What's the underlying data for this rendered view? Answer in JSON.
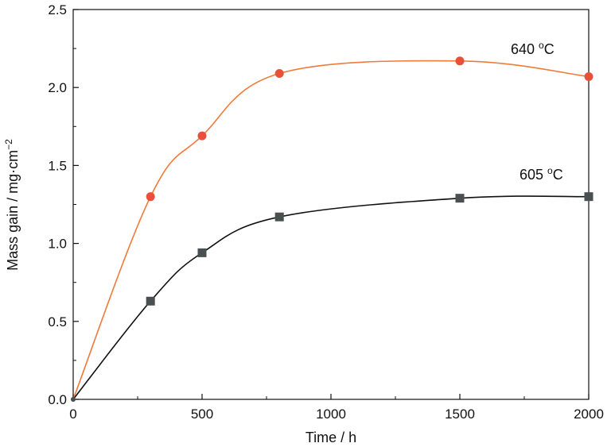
{
  "chart_data": {
    "type": "line",
    "title": "",
    "xlabel": "Time / h",
    "ylabel_main": "Mass gain / mg·cm",
    "ylabel_sup": "−2",
    "xlim": [
      0,
      2000
    ],
    "ylim": [
      0.0,
      2.5
    ],
    "x_ticks": [
      0,
      500,
      1000,
      1500,
      2000
    ],
    "x_tick_labels": [
      "0",
      "500",
      "1000",
      "1500",
      "2000"
    ],
    "y_ticks": [
      0.0,
      0.5,
      1.0,
      1.5,
      2.0,
      2.5
    ],
    "y_tick_labels": [
      "0.0",
      "0.5",
      "1.0",
      "1.5",
      "2.0",
      "2.5"
    ],
    "grid": false,
    "series": [
      {
        "label_main": "640 ",
        "label_sup": "o",
        "label_end": "C",
        "color": "#e8503a",
        "line_color": "#f07a3a",
        "marker": "circle",
        "x": [
          0,
          300,
          500,
          800,
          1500,
          2000
        ],
        "y": [
          0.0,
          1.3,
          1.69,
          2.09,
          2.17,
          2.07
        ]
      },
      {
        "label_main": "605 ",
        "label_sup": "o",
        "label_end": "C",
        "color": "#4a4f52",
        "line_color": "#111111",
        "marker": "square",
        "x": [
          0,
          300,
          500,
          800,
          1500,
          2000
        ],
        "y": [
          0.0,
          0.63,
          0.94,
          1.17,
          1.29,
          1.3
        ]
      }
    ]
  }
}
